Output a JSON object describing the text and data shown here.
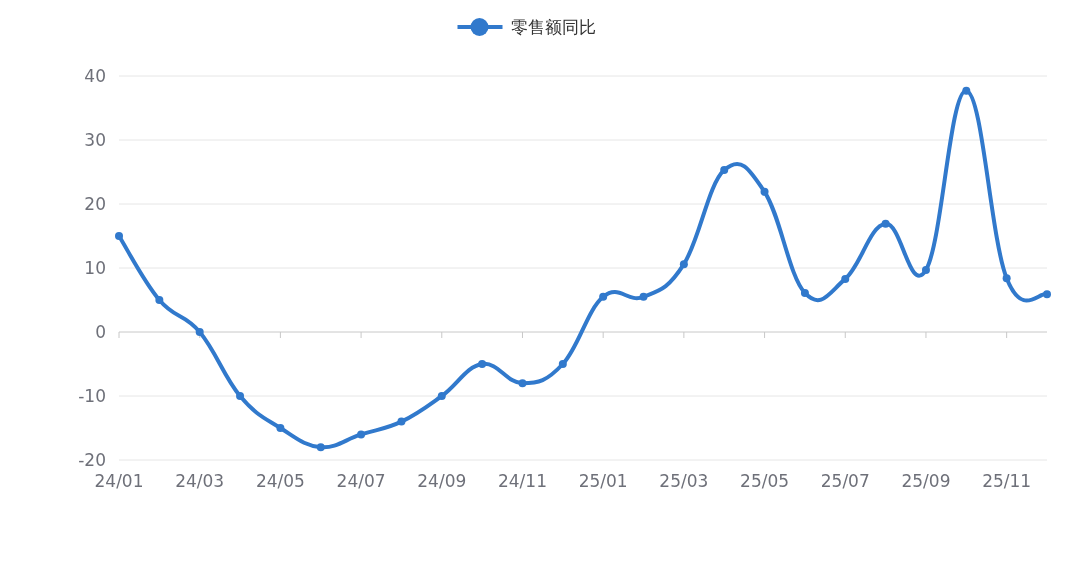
{
  "chart_data": {
    "type": "line",
    "categories": [
      "24/01",
      null,
      "24/03",
      null,
      "24/05",
      null,
      "24/07",
      null,
      "24/09",
      null,
      "24/11",
      null,
      "25/01",
      null,
      "25/03",
      null,
      "25/05",
      null,
      "25/07",
      null,
      "25/09",
      null,
      "25/11",
      null
    ],
    "series": [
      {
        "name": "零售额同比",
        "color": "#3179cc",
        "values": [
          15,
          5,
          0,
          -10,
          -15,
          -18,
          -16,
          -14,
          -10,
          -5,
          -8,
          -5,
          5.5,
          5.5,
          10.6,
          25.3,
          21.9,
          6.1,
          8.3,
          16.9,
          9.7,
          37.7,
          8.4,
          5.9
        ]
      }
    ],
    "ylim": [
      -20,
      40
    ],
    "yticks": [
      -20,
      -10,
      0,
      10,
      20,
      30,
      40
    ],
    "grid": "y",
    "legend": "top",
    "marker": "circle",
    "line_style": "solid"
  }
}
